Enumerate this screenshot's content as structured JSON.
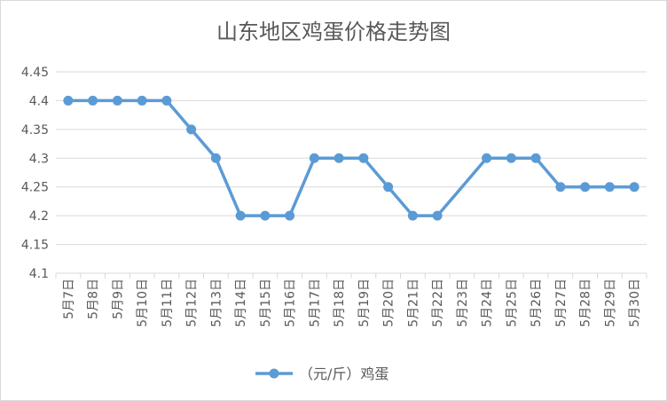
{
  "chart_data": {
    "type": "line",
    "title": "山东地区鸡蛋价格走势图",
    "xlabel": "",
    "ylabel": "",
    "categories": [
      "5月7日",
      "5月8日",
      "5月9日",
      "5月10日",
      "5月11日",
      "5月12日",
      "5月13日",
      "5月14日",
      "5月15日",
      "5月16日",
      "5月17日",
      "5月18日",
      "5月19日",
      "5月20日",
      "5月21日",
      "5月22日",
      "5月23日",
      "5月24日",
      "5月25日",
      "5月26日",
      "5月27日",
      "5月28日",
      "5月29日",
      "5月30日"
    ],
    "series": [
      {
        "name": "（元/斤）鸡蛋",
        "color": "#5b9bd5",
        "values": [
          4.4,
          4.4,
          4.4,
          4.4,
          4.4,
          4.35,
          4.3,
          4.2,
          4.2,
          4.2,
          4.3,
          4.3,
          4.3,
          4.25,
          4.2,
          4.2,
          null,
          4.3,
          4.3,
          4.3,
          4.25,
          4.25,
          4.25,
          4.25
        ]
      }
    ],
    "ylim": [
      4.1,
      4.45
    ],
    "yticks": [
      "4.1",
      "4.15",
      "4.2",
      "4.25",
      "4.3",
      "4.35",
      "4.4",
      "4.45"
    ],
    "grid": true,
    "legend": "bottom",
    "gridColor": "#d9d9d9",
    "textColor": "#595959"
  }
}
